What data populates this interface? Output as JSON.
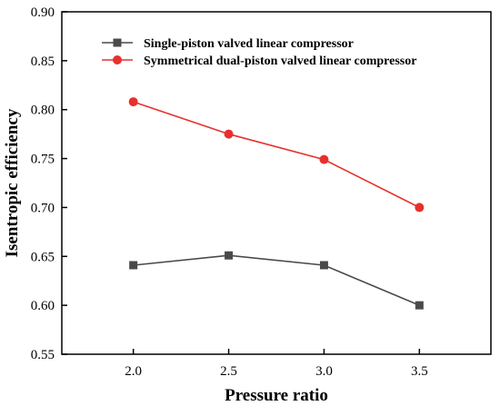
{
  "chart_data": {
    "type": "line",
    "xlabel": "Pressure ratio",
    "ylabel": "Isentropic efficiency",
    "x": [
      2.0,
      2.5,
      3.0,
      3.5
    ],
    "x_tick_labels": [
      "2.0",
      "2.5",
      "3.0",
      "3.5"
    ],
    "xlim": [
      1.625,
      3.875
    ],
    "ylim": [
      0.55,
      0.9
    ],
    "y_tick_labels": [
      "0.55",
      "0.60",
      "0.65",
      "0.70",
      "0.75",
      "0.80",
      "0.85",
      "0.90"
    ],
    "y_ticks": [
      0.55,
      0.6,
      0.65,
      0.7,
      0.75,
      0.8,
      0.85,
      0.9
    ],
    "grid": false,
    "legend_position": "top-center",
    "series": [
      {
        "name": "Single-piston valved linear compressor",
        "values": [
          0.641,
          0.651,
          0.641,
          0.6
        ],
        "color": "#4a4a4a",
        "marker": "square"
      },
      {
        "name": "Symmetrical dual-piston valved linear compressor",
        "values": [
          0.808,
          0.775,
          0.749,
          0.7
        ],
        "color": "#e8302c",
        "marker": "circle"
      }
    ]
  }
}
